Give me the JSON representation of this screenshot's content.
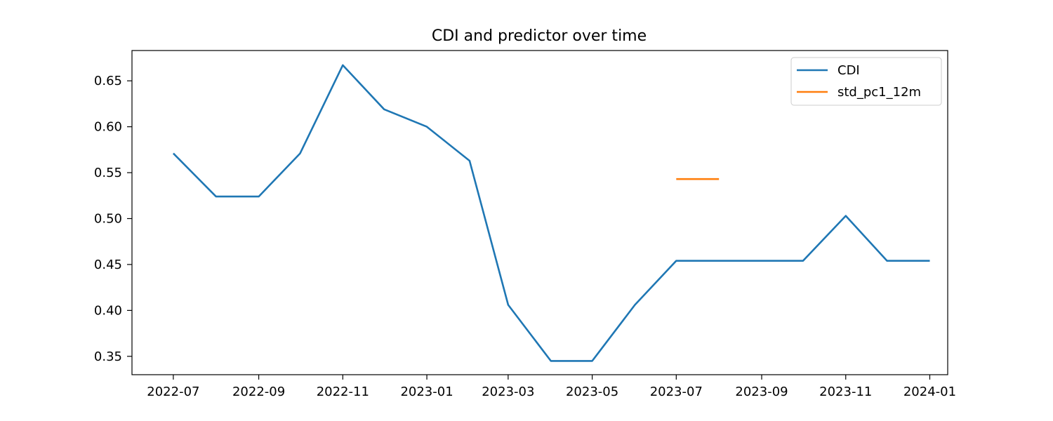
{
  "chart_data": {
    "type": "line",
    "title": "CDI and predictor over time",
    "xlabel": "",
    "ylabel": "",
    "x_ticks": [
      "2022-07",
      "2022-09",
      "2022-11",
      "2023-01",
      "2023-03",
      "2023-05",
      "2023-07",
      "2023-09",
      "2023-11",
      "2024-01"
    ],
    "y_ticks": [
      "0.35",
      "0.40",
      "0.45",
      "0.50",
      "0.55",
      "0.60",
      "0.65"
    ],
    "xlim": [
      "2022-06-01",
      "2024-01-14"
    ],
    "ylim": [
      0.33,
      0.683
    ],
    "grid": false,
    "legend_position": "top-right",
    "series": [
      {
        "name": "CDI",
        "color": "#1f77b4",
        "points": [
          [
            "2022-07-01",
            0.571
          ],
          [
            "2022-08-01",
            0.524
          ],
          [
            "2022-09-01",
            0.524
          ],
          [
            "2022-10-01",
            0.571
          ],
          [
            "2022-11-01",
            0.667
          ],
          [
            "2022-12-01",
            0.619
          ],
          [
            "2023-01-01",
            0.6
          ],
          [
            "2023-02-01",
            0.563
          ],
          [
            "2023-03-01",
            0.406
          ],
          [
            "2023-04-01",
            0.345
          ],
          [
            "2023-05-01",
            0.345
          ],
          [
            "2023-06-01",
            0.406
          ],
          [
            "2023-07-01",
            0.454
          ],
          [
            "2023-08-01",
            0.454
          ],
          [
            "2023-09-01",
            0.454
          ],
          [
            "2023-10-01",
            0.454
          ],
          [
            "2023-11-01",
            0.503
          ],
          [
            "2023-12-01",
            0.454
          ],
          [
            "2024-01-01",
            0.454
          ]
        ]
      },
      {
        "name": "std_pc1_12m",
        "color": "#ff7f0e",
        "points": [
          [
            "2023-07-01",
            0.543
          ],
          [
            "2023-08-01",
            0.543
          ]
        ]
      }
    ]
  }
}
